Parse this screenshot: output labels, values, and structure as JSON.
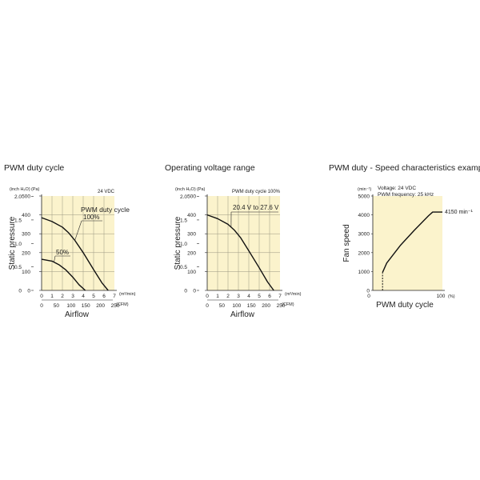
{
  "chart_data": [
    {
      "type": "line",
      "title": "PWM duty cycle",
      "note": "24 VDC",
      "xlabel": "Airflow",
      "ylabel": "Static pressure",
      "x_unit_top": "(m³/min)",
      "x_unit_bottom": "(CFM)",
      "y_unit_left": "(inch H₂O)",
      "y_unit_right": "(Pa)",
      "xlim": [
        0,
        7
      ],
      "ylim": [
        0,
        500
      ],
      "x_ticks": [
        "0",
        "1",
        "2",
        "3",
        "4",
        "5",
        "6",
        "7"
      ],
      "x_ticks_cfm": [
        "0",
        "50",
        "100",
        "150",
        "200",
        "250"
      ],
      "y_ticks_pa": [
        "0",
        "100",
        "200",
        "300",
        "400",
        "500"
      ],
      "y_ticks_inch": [
        "0",
        "0.5",
        "1.0",
        "1.5",
        "2.0"
      ],
      "annotations": [
        "PWM duty cycle",
        "100%",
        "50%"
      ],
      "grid": true,
      "series": [
        {
          "name": "100%",
          "x": [
            0,
            1,
            2,
            2.6,
            3.2,
            4,
            5,
            5.8,
            6.4
          ],
          "y": [
            385,
            365,
            335,
            305,
            265,
            200,
            110,
            40,
            0
          ]
        },
        {
          "name": "50%",
          "x": [
            0,
            1,
            1.7,
            2.3,
            3,
            3.6,
            4.2
          ],
          "y": [
            165,
            155,
            135,
            110,
            70,
            30,
            0
          ]
        }
      ]
    },
    {
      "type": "line",
      "title": "Operating voltage range",
      "note": "PWM duty cycle 100%",
      "xlabel": "Airflow",
      "ylabel": "Static pressure",
      "x_unit_top": "(m³/min)",
      "x_unit_bottom": "(CFM)",
      "y_unit_left": "(inch H₂O)",
      "y_unit_right": "(Pa)",
      "xlim": [
        0,
        7
      ],
      "ylim": [
        0,
        500
      ],
      "x_ticks": [
        "0",
        "1",
        "2",
        "3",
        "4",
        "5",
        "6",
        "7"
      ],
      "x_ticks_cfm": [
        "0",
        "50",
        "100",
        "150",
        "200",
        "250"
      ],
      "y_ticks_pa": [
        "0",
        "100",
        "200",
        "300",
        "400",
        "500"
      ],
      "y_ticks_inch": [
        "0",
        "0.5",
        "1.0",
        "1.5",
        "2.0"
      ],
      "annotations": [
        "20.4 V to 27.6 V"
      ],
      "grid": true,
      "series": [
        {
          "name": "20.4 V to 27.6 V",
          "x": [
            0,
            1,
            2,
            2.6,
            3.2,
            4,
            5,
            5.8,
            6.4
          ],
          "y": [
            400,
            380,
            350,
            320,
            280,
            210,
            120,
            45,
            0
          ]
        }
      ]
    },
    {
      "type": "line",
      "title": "PWM duty - Speed characteristics example",
      "note": "Voltage: 24 VDC",
      "note2": "PWM frequency: 25 kHz",
      "xlabel": "PWM duty cycle",
      "ylabel": "Fan speed",
      "y_unit": "(min⁻¹)",
      "x_unit": "(%)",
      "xlim": [
        0,
        100
      ],
      "ylim": [
        0,
        5000
      ],
      "x_ticks": [
        "0",
        "100"
      ],
      "y_ticks": [
        "0",
        "1000",
        "2000",
        "3000",
        "4000",
        "5000"
      ],
      "annotations": [
        "4150 min⁻¹"
      ],
      "grid": false,
      "series": [
        {
          "name": "",
          "x": [
            14,
            20,
            40,
            60,
            80,
            86,
            100
          ],
          "y": [
            950,
            1450,
            2400,
            3200,
            3950,
            4150,
            4150
          ]
        }
      ],
      "dashed_segment": {
        "x": [
          14,
          14
        ],
        "y": [
          0,
          950
        ]
      }
    }
  ]
}
